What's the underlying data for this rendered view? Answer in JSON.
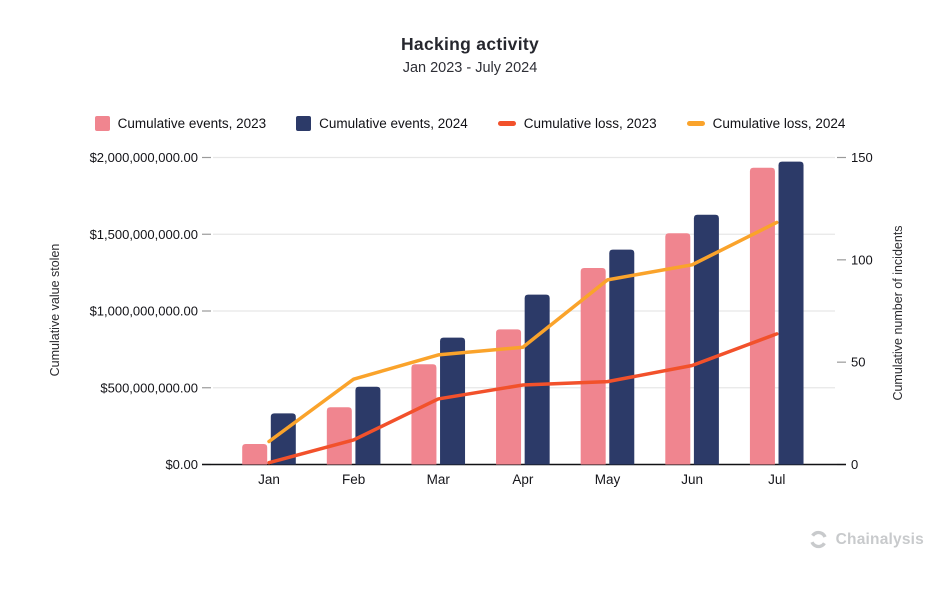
{
  "header": {
    "title": "Hacking activity",
    "subtitle": "Jan 2023 - July 2024"
  },
  "legend": [
    {
      "label": "Cumulative events, 2023",
      "marker": "square",
      "color": "#F0858F"
    },
    {
      "label": "Cumulative events, 2024",
      "marker": "square",
      "color": "#2C3A68"
    },
    {
      "label": "Cumulative loss, 2023",
      "marker": "dash",
      "color": "#F2512B"
    },
    {
      "label": "Cumulative loss, 2024",
      "marker": "dash",
      "color": "#FAA32B"
    }
  ],
  "axes": {
    "left": {
      "title": "Cumulative value stolen",
      "ticks": [
        {
          "value": 2000000000,
          "label": "$2,000,000,000.00"
        },
        {
          "value": 1500000000,
          "label": "$1,500,000,000.00"
        },
        {
          "value": 1000000000,
          "label": "$1,000,000,000.00"
        },
        {
          "value": 500000000,
          "label": "$500,000,000.00"
        },
        {
          "value": 0,
          "label": "$0.00"
        }
      ]
    },
    "right": {
      "title": "Cumulative number of incidents",
      "ticks": [
        {
          "value": 150,
          "label": "150"
        },
        {
          "value": 100,
          "label": "100"
        },
        {
          "value": 50,
          "label": "50"
        },
        {
          "value": 0,
          "label": "0"
        }
      ]
    },
    "x": {
      "labels": [
        "Jan",
        "Feb",
        "Mar",
        "Apr",
        "May",
        "Jun",
        "Jul"
      ]
    }
  },
  "chart_data": {
    "type": "combo (grouped bars + lines, dual axis)",
    "title": "Hacking activity",
    "subtitle": "Jan 2023 - July 2024",
    "categories": [
      "Jan",
      "Feb",
      "Mar",
      "Apr",
      "May",
      "Jun",
      "Jul"
    ],
    "left_axis": {
      "label": "Cumulative value stolen",
      "range": [
        0,
        2000000000
      ],
      "tick_step": 500000000,
      "format": "USD"
    },
    "right_axis": {
      "label": "Cumulative number of incidents",
      "range": [
        0,
        150
      ],
      "tick_step": 50
    },
    "grid": "horizontal gridlines on, vertical off",
    "legend_position": "top",
    "series": [
      {
        "name": "Cumulative events, 2023",
        "type": "bar",
        "axis": "right",
        "color": "#F0858F",
        "values": [
          10,
          28,
          49,
          66,
          96,
          113,
          145
        ]
      },
      {
        "name": "Cumulative events, 2024",
        "type": "bar",
        "axis": "right",
        "color": "#2C3A68",
        "values": [
          25,
          38,
          62,
          83,
          105,
          122,
          148
        ]
      },
      {
        "name": "Cumulative loss, 2023",
        "type": "line",
        "axis": "left",
        "color": "#F2512B",
        "values": [
          12000000,
          160000000,
          427000000,
          518000000,
          540000000,
          645000000,
          851000000
        ]
      },
      {
        "name": "Cumulative loss, 2024",
        "type": "line",
        "axis": "left",
        "color": "#FAA32B",
        "values": [
          150000000,
          556000000,
          714000000,
          764000000,
          1203000000,
          1301000000,
          1577000000
        ]
      }
    ]
  },
  "footer": {
    "logo_text": "Chainalysis"
  }
}
